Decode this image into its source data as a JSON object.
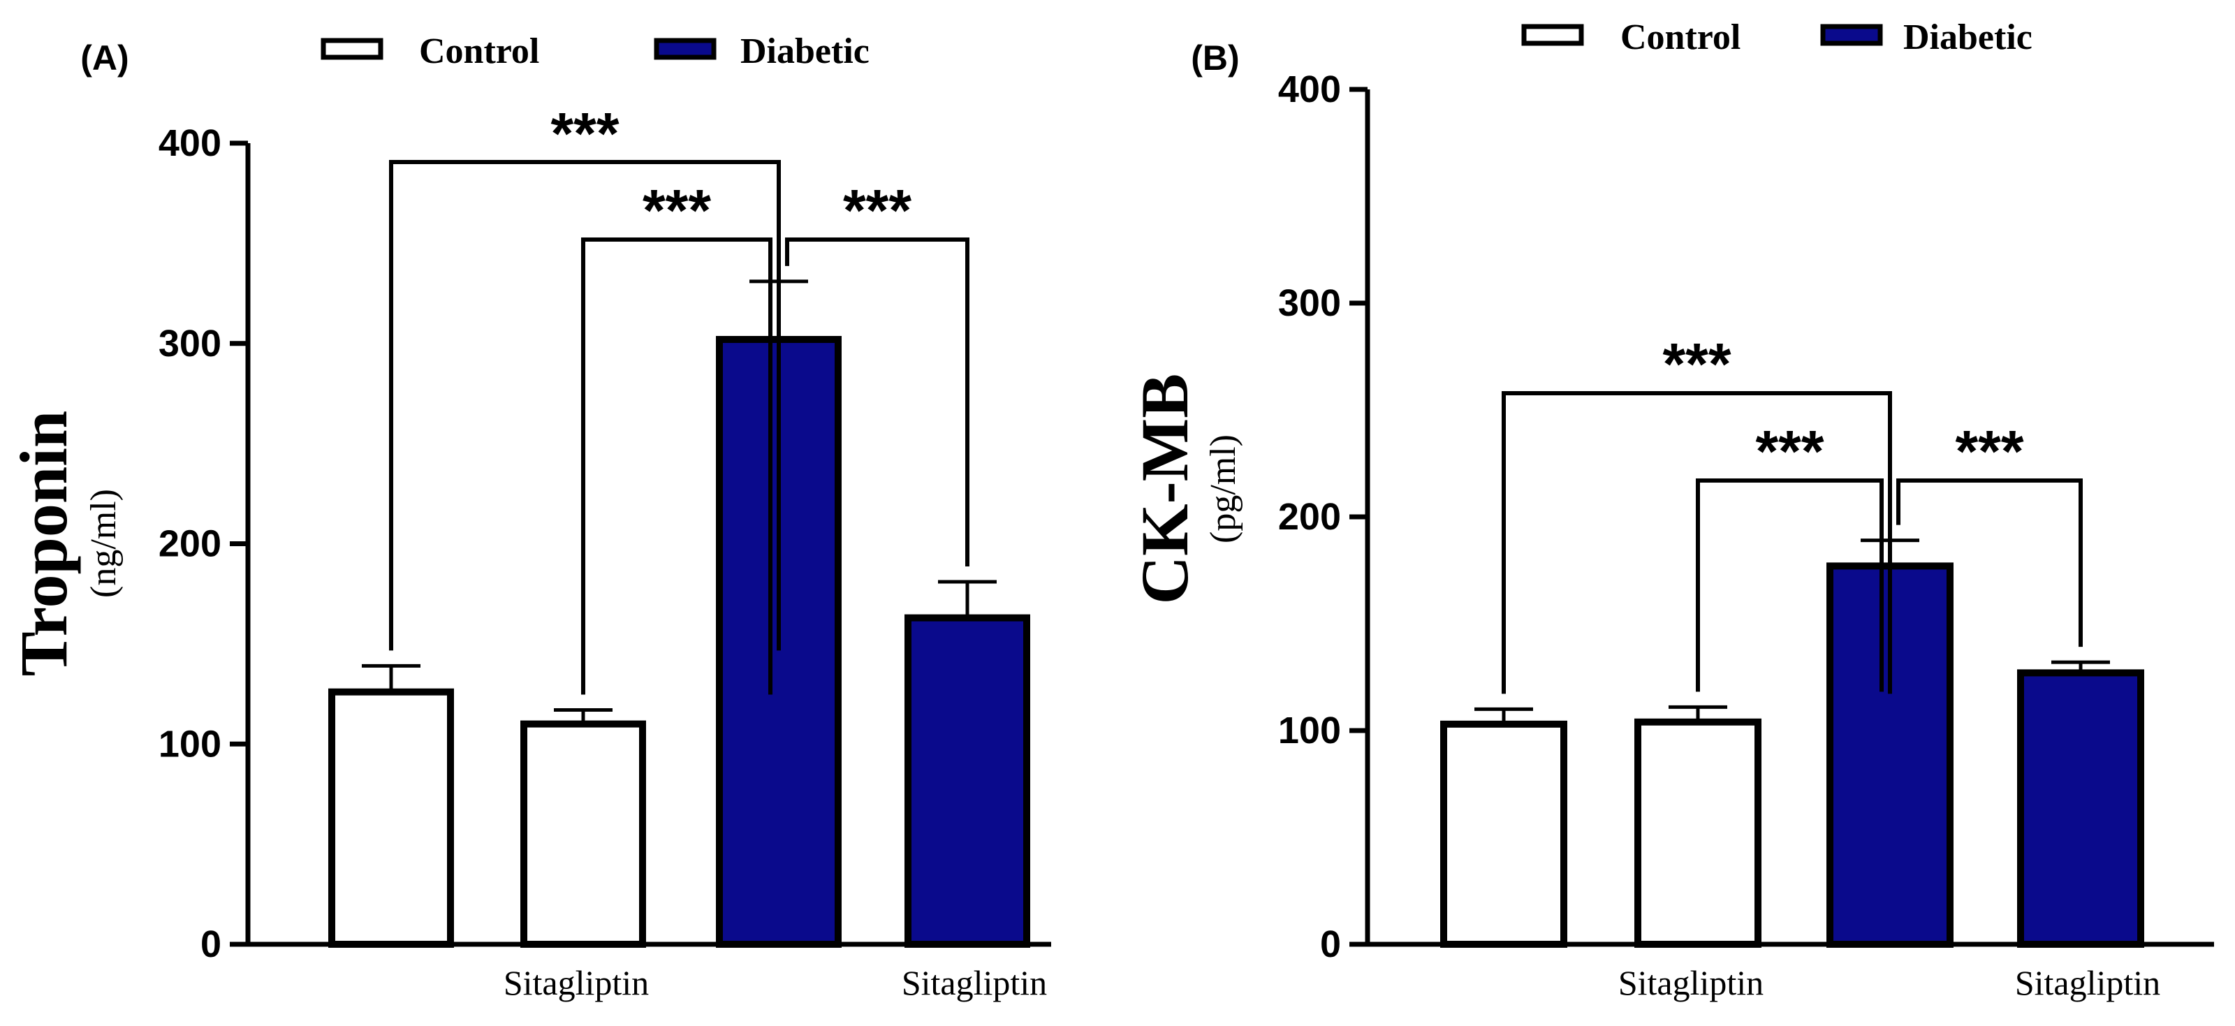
{
  "colors": {
    "control": "#ffffff",
    "diabetic": "#0a0a8c",
    "stroke": "#000000"
  },
  "chart_data": [
    {
      "type": "bar",
      "panel": "(A)",
      "ylabel": "Troponin",
      "yunit": "(ng/ml)",
      "ylim": [
        0,
        400
      ],
      "yticks": [
        0,
        100,
        200,
        300,
        400
      ],
      "legend": [
        "Control",
        "Diabetic"
      ],
      "group_labels": [
        "Sitagliptin",
        "Sitagliptin"
      ],
      "bars": [
        {
          "group": "Control",
          "value": 126,
          "error": 13
        },
        {
          "group": "Control + Sitagliptin",
          "value": 110,
          "error": 7
        },
        {
          "group": "Diabetic",
          "value": 302,
          "error": 29
        },
        {
          "group": "Diabetic + Sitagliptin",
          "value": 163,
          "error": 18
        }
      ],
      "comparisons": [
        {
          "from": 0,
          "to": 2,
          "label": "***"
        },
        {
          "from": 1,
          "to": 2,
          "label": "***"
        },
        {
          "from": 2,
          "to": 3,
          "label": "***"
        }
      ]
    },
    {
      "type": "bar",
      "panel": "(B)",
      "ylabel": "CK-MB",
      "yunit": "(pg/ml)",
      "ylim": [
        0,
        400
      ],
      "yticks": [
        0,
        100,
        200,
        300,
        400
      ],
      "legend": [
        "Control",
        "Diabetic"
      ],
      "group_labels": [
        "Sitagliptin",
        "Sitagliptin"
      ],
      "bars": [
        {
          "group": "Control",
          "value": 103,
          "error": 7
        },
        {
          "group": "Control + Sitagliptin",
          "value": 104,
          "error": 7
        },
        {
          "group": "Diabetic",
          "value": 177,
          "error": 12
        },
        {
          "group": "Diabetic + Sitagliptin",
          "value": 127,
          "error": 5
        }
      ],
      "comparisons": [
        {
          "from": 0,
          "to": 2,
          "label": "***"
        },
        {
          "from": 1,
          "to": 2,
          "label": "***"
        },
        {
          "from": 2,
          "to": 3,
          "label": "***"
        }
      ]
    }
  ]
}
